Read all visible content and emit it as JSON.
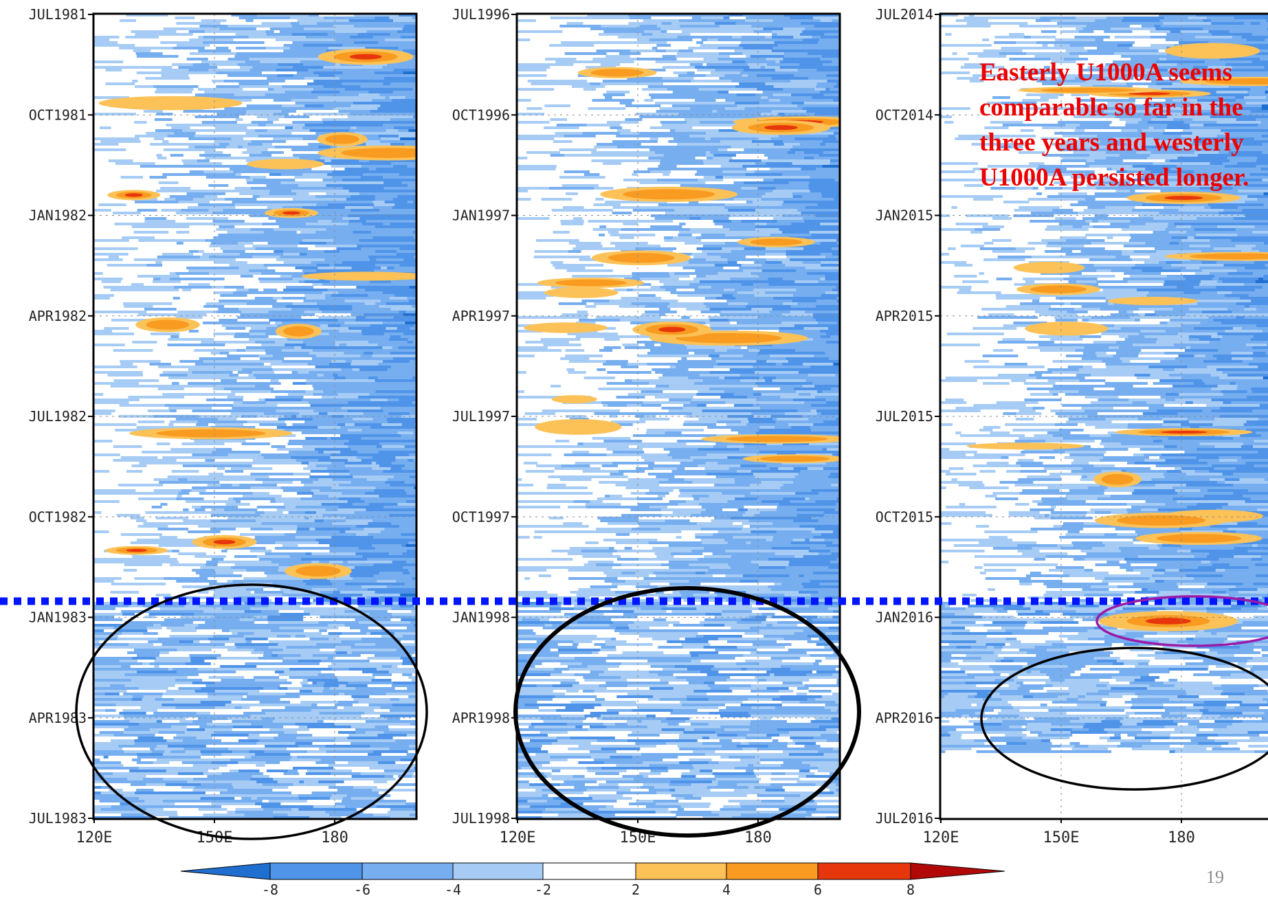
{
  "chart_data": [
    {
      "type": "heatmap",
      "panel": "a",
      "title_visible": "",
      "y_ticks": [
        "JUL1981",
        "OCT1981",
        "JAN1982",
        "APR1982",
        "JUL1982",
        "OCT1982",
        "JAN1983",
        "APR1983",
        "JUL1983"
      ],
      "x_ticks": [
        "120E",
        "150E",
        "180"
      ],
      "variable": "U1000A",
      "regimes": [
        {
          "period": "JUL1981-JAN1983",
          "west_value": 0,
          "east_value": -5,
          "westerly_bursts": 14
        },
        {
          "period": "JAN1983-JUL1983",
          "value": -3
        }
      ]
    },
    {
      "type": "heatmap",
      "panel": "b",
      "title_visible": "",
      "y_ticks": [
        "JUL1996",
        "OCT1996",
        "JAN1997",
        "APR1997",
        "JUL1997",
        "OCT1997",
        "JAN1998",
        "APR1998",
        "JUL1998"
      ],
      "x_ticks": [
        "120E",
        "150E",
        "180"
      ],
      "variable": "U1000A",
      "regimes": [
        {
          "period": "JUL1996-JAN1998",
          "west_value": 0,
          "east_value": -4,
          "westerly_bursts": 16
        },
        {
          "period": "JAN1998-JUL1998",
          "value": -3
        }
      ]
    },
    {
      "type": "heatmap",
      "panel": "c",
      "title_visible": "",
      "y_ticks": [
        "JUL2014",
        "OCT2014",
        "JAN2015",
        "APR2015",
        "JUL2015",
        "OCT2015",
        "JAN2016",
        "APR2016",
        "JUL2016"
      ],
      "x_ticks": [
        "120E",
        "150E",
        "180"
      ],
      "variable": "U1000A",
      "regimes": [
        {
          "period": "JUL2014-JAN2016",
          "west_value": 0,
          "east_value": -4,
          "westerly_bursts": 16
        },
        {
          "period": "JAN2016-MAY2016",
          "value": -3
        },
        {
          "period": "MAY2016-JUL2016",
          "value": null
        }
      ]
    }
  ],
  "colorbar": {
    "tick_labels": [
      "-8",
      "-6",
      "-4",
      "-2",
      "2",
      "4",
      "6",
      "8"
    ],
    "colors": [
      "#1f6fd0",
      "#4f94e8",
      "#76aef0",
      "#a6ccf5",
      "#ffffff",
      "#fcc257",
      "#f89b20",
      "#e8360c",
      "#b30808"
    ]
  },
  "annotations": {
    "note_text": "Easterly U1000A seems comparable so far in the three years and westerly U1000A persisted longer.",
    "divider_color": "#0014ff",
    "ellipse_color_easterly": "#000000",
    "ellipse_color_westerly": "#9b1aa8"
  },
  "slide_number": "19"
}
